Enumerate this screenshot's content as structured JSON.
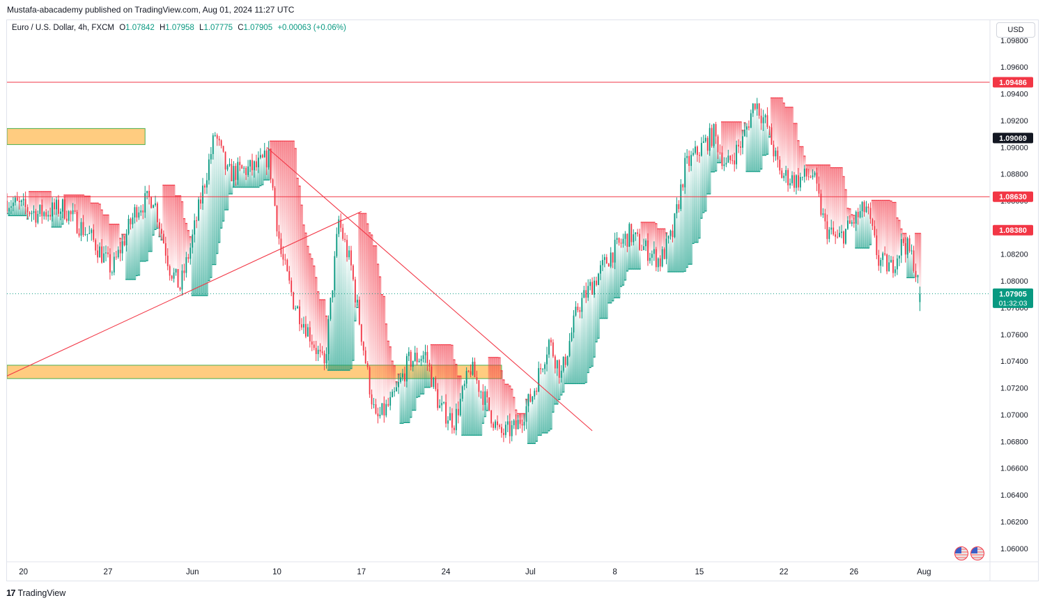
{
  "publisher_line": "Mustafa-abacademy published on TradingView.com, Aug 01, 2024 11:27 UTC",
  "header": {
    "symbol": "Euro / U.S. Dollar, 4h, FXCM",
    "o_label": "O",
    "o_value": "1.07842",
    "h_label": "H",
    "h_value": "1.07958",
    "l_label": "L",
    "l_value": "1.07775",
    "c_label": "C",
    "c_value": "1.07905",
    "change": "+0.00063 (+0.06%)"
  },
  "currency_button": "USD",
  "footer_brand": "TradingView",
  "flags_icon": "us-eu-flags-icon",
  "colors": {
    "up": "#089981",
    "down": "#f23645",
    "zone": "#ffcc80",
    "zone_border": "#4caf50",
    "line": "#f23645",
    "text": "#131722"
  },
  "chart_data": {
    "type": "candlestick",
    "ylim": [
      1.059,
      1.0995
    ],
    "y_ticks": [
      "1.09800",
      "1.09600",
      "1.09400",
      "1.09200",
      "1.09000",
      "1.08800",
      "1.08600",
      "1.08400",
      "1.08200",
      "1.08000",
      "1.07800",
      "1.07600",
      "1.07400",
      "1.07200",
      "1.07000",
      "1.06800",
      "1.06600",
      "1.06400",
      "1.06200",
      "1.06000"
    ],
    "x_ticks": [
      "20",
      "27",
      "Jun",
      "10",
      "17",
      "24",
      "Jul",
      "8",
      "15",
      "22",
      "26",
      "Aug"
    ],
    "x_tick_index": [
      1,
      42,
      83,
      124,
      165,
      206,
      247,
      288,
      329,
      370,
      404,
      438
    ],
    "x_range_index": [
      -7,
      470
    ],
    "price_labels": [
      {
        "text": "1.09486",
        "value": 1.09486,
        "style": "red"
      },
      {
        "text": "1.09069",
        "value": 1.09069,
        "style": "black"
      },
      {
        "text": "1.08630",
        "value": 1.0863,
        "style": "red"
      },
      {
        "text": "1.08380",
        "value": 1.0838,
        "style": "red"
      },
      {
        "text": "1.07905",
        "value": 1.07905,
        "style": "green"
      }
    ],
    "countdown": "01:32:03",
    "horizontal_lines": [
      1.09486,
      1.0863
    ],
    "current_price": 1.07905,
    "zones": [
      {
        "from_index": -7,
        "to_index": 60,
        "low": 1.0902,
        "high": 1.0914
      },
      {
        "from_index": -7,
        "to_index": 233,
        "low": 1.0727,
        "high": 1.0737
      }
    ],
    "trendlines": [
      {
        "from": [
          -7,
          1.0729
        ],
        "to": [
          165,
          1.0852
        ]
      },
      {
        "from": [
          119,
          1.09
        ],
        "to": [
          277,
          1.0688
        ]
      }
    ],
    "waypoints": [
      [
        -7,
        1.086
      ],
      [
        8,
        1.085
      ],
      [
        20,
        1.0855
      ],
      [
        34,
        1.0832
      ],
      [
        44,
        1.0808
      ],
      [
        56,
        1.0855
      ],
      [
        64,
        1.0863
      ],
      [
        72,
        1.081
      ],
      [
        77,
        1.0795
      ],
      [
        82,
        1.0825
      ],
      [
        94,
        1.091
      ],
      [
        100,
        1.088
      ],
      [
        114,
        1.0885
      ],
      [
        120,
        1.0893
      ],
      [
        126,
        1.082
      ],
      [
        132,
        1.0785
      ],
      [
        140,
        1.076
      ],
      [
        147,
        1.0735
      ],
      [
        154,
        1.0845
      ],
      [
        160,
        1.081
      ],
      [
        168,
        1.073
      ],
      [
        172,
        1.0695
      ],
      [
        180,
        1.071
      ],
      [
        188,
        1.074
      ],
      [
        196,
        1.0745
      ],
      [
        203,
        1.0705
      ],
      [
        210,
        1.0695
      ],
      [
        218,
        1.0735
      ],
      [
        224,
        1.0715
      ],
      [
        232,
        1.0685
      ],
      [
        240,
        1.069
      ],
      [
        248,
        1.0715
      ],
      [
        256,
        1.0755
      ],
      [
        262,
        1.073
      ],
      [
        270,
        1.078
      ],
      [
        278,
        1.08
      ],
      [
        286,
        1.082
      ],
      [
        295,
        1.0835
      ],
      [
        302,
        1.0825
      ],
      [
        310,
        1.0815
      ],
      [
        316,
        1.0835
      ],
      [
        322,
        1.0885
      ],
      [
        330,
        1.09
      ],
      [
        336,
        1.091
      ],
      [
        342,
        1.0885
      ],
      [
        350,
        1.0905
      ],
      [
        356,
        1.0935
      ],
      [
        362,
        1.0915
      ],
      [
        368,
        1.088
      ],
      [
        376,
        1.0875
      ],
      [
        384,
        1.088
      ],
      [
        390,
        1.084
      ],
      [
        396,
        1.083
      ],
      [
        404,
        1.0845
      ],
      [
        410,
        1.0855
      ],
      [
        416,
        1.0815
      ],
      [
        422,
        1.081
      ],
      [
        428,
        1.083
      ],
      [
        433,
        1.0815
      ],
      [
        436,
        1.079
      ]
    ]
  }
}
